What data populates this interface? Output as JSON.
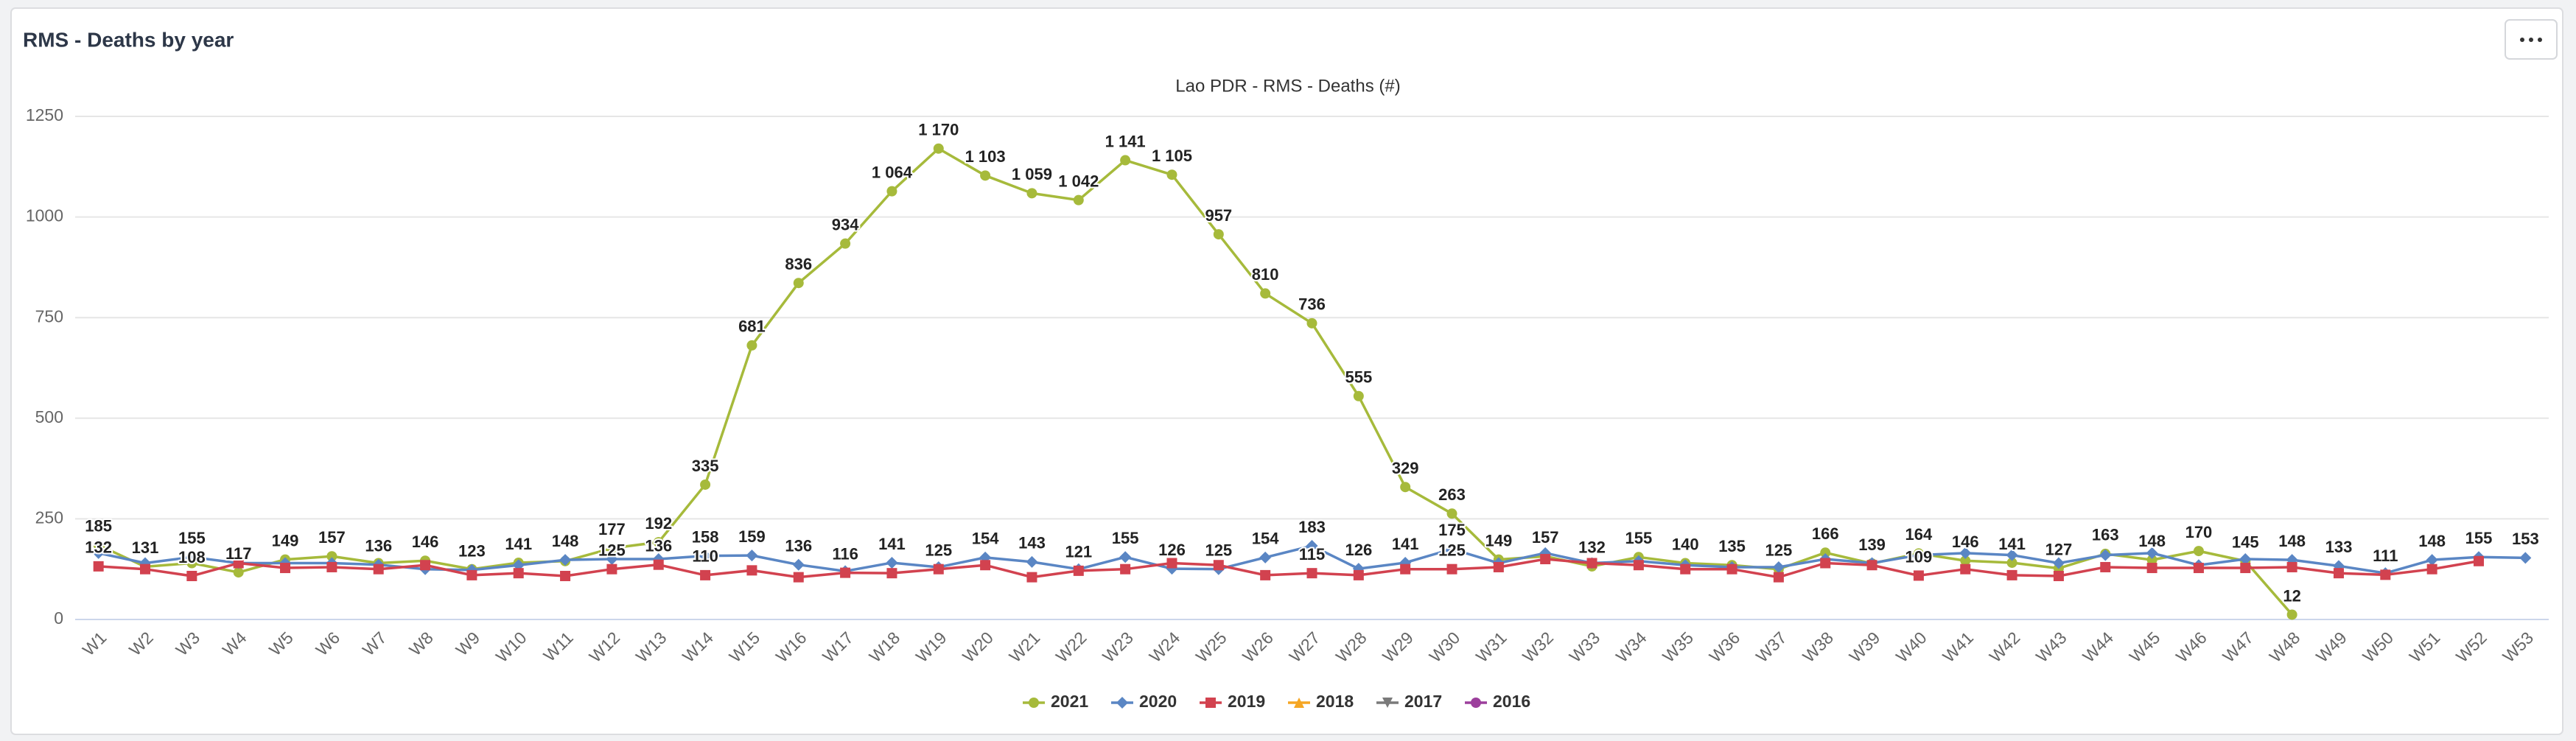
{
  "chart_data": {
    "type": "line",
    "card_title": "RMS - Deaths by year",
    "title": "Lao PDR - RMS - Deaths (#)",
    "categories": [
      "W1",
      "W2",
      "W3",
      "W4",
      "W5",
      "W6",
      "W7",
      "W8",
      "W9",
      "W10",
      "W11",
      "W12",
      "W13",
      "W14",
      "W15",
      "W16",
      "W17",
      "W18",
      "W19",
      "W20",
      "W21",
      "W22",
      "W23",
      "W24",
      "W25",
      "W26",
      "W27",
      "W28",
      "W29",
      "W30",
      "W31",
      "W32",
      "W33",
      "W34",
      "W35",
      "W36",
      "W37",
      "W38",
      "W39",
      "W40",
      "W41",
      "W42",
      "W43",
      "W44",
      "W45",
      "W46",
      "W47",
      "W48",
      "W49",
      "W50",
      "W51",
      "W52",
      "W53"
    ],
    "ylim": [
      0,
      1250
    ],
    "yticks": [
      0,
      250,
      500,
      750,
      1000,
      1250
    ],
    "grid": true,
    "legend": "bottom",
    "series": [
      {
        "name": "2021",
        "color": "#a6ba3b",
        "marker": "circle",
        "values": [
          185,
          131,
          140,
          117,
          149,
          157,
          140,
          146,
          125,
          141,
          145,
          177,
          192,
          335,
          681,
          836,
          934,
          1064,
          1170,
          1103,
          1059,
          1042,
          1141,
          1105,
          957,
          810,
          736,
          555,
          329,
          263,
          149,
          157,
          132,
          155,
          140,
          135,
          125,
          166,
          139,
          164,
          146,
          141,
          127,
          163,
          148,
          170,
          145,
          12,
          null,
          null,
          null,
          null,
          null
        ],
        "value_labels": [
          "185",
          "131",
          null,
          "117",
          "149",
          "157",
          null,
          "146",
          null,
          "141",
          null,
          "177",
          "192",
          "335",
          "681",
          "836",
          "934",
          "1 064",
          "1 170",
          "1 103",
          "1 059",
          "1 042",
          "1 141",
          "1 105",
          "957",
          "810",
          "736",
          "555",
          "329",
          "263",
          "149",
          "157",
          "132",
          "155",
          "140",
          "135",
          "125",
          "166",
          "139",
          "164",
          "146",
          "141",
          "127",
          "163",
          "148",
          "170",
          "145",
          "12",
          null,
          null,
          null,
          null,
          null
        ]
      },
      {
        "name": "2020",
        "color": "#5a86c4",
        "marker": "diamond",
        "values": [
          165,
          140,
          155,
          140,
          140,
          140,
          136,
          125,
          123,
          135,
          148,
          150,
          150,
          158,
          159,
          136,
          120,
          141,
          130,
          154,
          143,
          125,
          155,
          126,
          125,
          154,
          183,
          126,
          141,
          175,
          140,
          165,
          140,
          145,
          135,
          130,
          130,
          150,
          140,
          160,
          165,
          160,
          140,
          160,
          165,
          135,
          150,
          148,
          133,
          115,
          148,
          155,
          153
        ],
        "value_labels": [
          null,
          null,
          "155",
          null,
          null,
          null,
          "136",
          null,
          "123",
          null,
          "148",
          null,
          null,
          "158",
          "159",
          "136",
          null,
          "141",
          null,
          "154",
          "143",
          null,
          "155",
          "126",
          "125",
          "154",
          "183",
          "126",
          "141",
          "175",
          null,
          null,
          null,
          null,
          null,
          null,
          null,
          null,
          null,
          null,
          null,
          null,
          null,
          null,
          null,
          null,
          null,
          "148",
          "133",
          null,
          "148",
          "155",
          "153"
        ]
      },
      {
        "name": "2019",
        "color": "#d2424f",
        "marker": "square",
        "values": [
          132,
          125,
          108,
          140,
          128,
          130,
          125,
          135,
          110,
          115,
          108,
          125,
          136,
          110,
          122,
          105,
          116,
          115,
          125,
          135,
          105,
          121,
          125,
          140,
          135,
          110,
          115,
          110,
          125,
          125,
          130,
          150,
          140,
          135,
          125,
          125,
          105,
          140,
          135,
          109,
          125,
          110,
          108,
          130,
          128,
          128,
          128,
          130,
          115,
          111,
          125,
          145,
          null
        ],
        "value_labels": [
          "132",
          null,
          "108",
          null,
          null,
          null,
          null,
          null,
          null,
          null,
          null,
          "125",
          "136",
          "110",
          null,
          null,
          "116",
          null,
          "125",
          null,
          null,
          "121",
          null,
          null,
          null,
          null,
          "115",
          null,
          null,
          "125",
          null,
          null,
          null,
          null,
          null,
          null,
          null,
          null,
          null,
          "109",
          null,
          null,
          null,
          null,
          null,
          null,
          null,
          null,
          null,
          "111",
          null,
          null,
          null
        ]
      },
      {
        "name": "2018",
        "color": "#f5a623",
        "marker": "triangle",
        "values": [
          null,
          null,
          null,
          null,
          null,
          null,
          null,
          null,
          null,
          null,
          null,
          null,
          null,
          null,
          null,
          null,
          null,
          null,
          null,
          null,
          null,
          null,
          null,
          null,
          null,
          null,
          null,
          null,
          null,
          null,
          null,
          null,
          null,
          null,
          null,
          null,
          null,
          null,
          null,
          null,
          null,
          null,
          null,
          null,
          null,
          null,
          null,
          null,
          null,
          null,
          null,
          null,
          null
        ]
      },
      {
        "name": "2017",
        "color": "#7a7a7a",
        "marker": "triangle-down",
        "values": [
          null,
          null,
          null,
          null,
          null,
          null,
          null,
          null,
          null,
          null,
          null,
          null,
          null,
          null,
          null,
          null,
          null,
          null,
          null,
          null,
          null,
          null,
          null,
          null,
          null,
          null,
          null,
          null,
          null,
          null,
          null,
          null,
          null,
          null,
          null,
          null,
          null,
          null,
          null,
          null,
          null,
          null,
          null,
          null,
          null,
          null,
          null,
          null,
          null,
          null,
          null,
          null,
          null
        ]
      },
      {
        "name": "2016",
        "color": "#9c3f9c",
        "marker": "circle",
        "values": [
          null,
          null,
          null,
          null,
          null,
          null,
          null,
          null,
          null,
          null,
          null,
          null,
          null,
          null,
          null,
          null,
          null,
          null,
          null,
          null,
          null,
          null,
          null,
          null,
          null,
          null,
          null,
          null,
          null,
          null,
          null,
          null,
          null,
          null,
          null,
          null,
          null,
          null,
          null,
          null,
          null,
          null,
          null,
          null,
          null,
          null,
          null,
          null,
          null,
          null,
          null,
          null,
          null
        ]
      }
    ]
  }
}
